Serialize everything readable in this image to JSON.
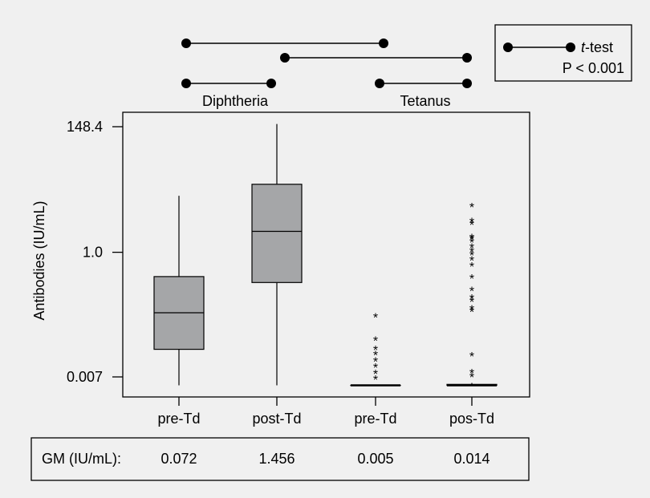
{
  "chart_data": {
    "type": "boxplot",
    "ylabel": "Antibodies (IU/mL)",
    "y_scale": "log",
    "yticks": [
      {
        "value": 148.4,
        "label": "148.4"
      },
      {
        "value": 1.0,
        "label": "1.0"
      },
      {
        "value": 0.007,
        "label": "0.007"
      }
    ],
    "ylim": [
      0.004,
      160
    ],
    "groups": [
      {
        "label": "Diphtheria",
        "categories": [
          0,
          1
        ]
      },
      {
        "label": "Tetanus",
        "categories": [
          2,
          3
        ]
      }
    ],
    "categories": [
      "pre-Td",
      "post-Td",
      "pre-Td",
      "pos-Td"
    ],
    "boxes": [
      {
        "min": 0.005,
        "q1": 0.021,
        "median": 0.09,
        "q3": 0.38,
        "max": 9.5,
        "outliers": []
      },
      {
        "min": 0.005,
        "q1": 0.3,
        "median": 2.3,
        "q3": 15,
        "max": 165,
        "outliers": []
      },
      {
        "min": 0.005,
        "q1": 0.005,
        "median": 0.005,
        "q3": 0.005,
        "max": 0.005,
        "outliers": [
          0.0068,
          0.0085,
          0.011,
          0.014,
          0.018,
          0.022,
          0.032,
          0.08
        ]
      },
      {
        "min": 0.005,
        "q1": 0.005,
        "median": 0.005,
        "q3": 0.0052,
        "max": 0.0055,
        "outliers": [
          0.0075,
          0.0088,
          0.017,
          0.1,
          0.11,
          0.15,
          0.17,
          0.23,
          0.38,
          0.61,
          0.78,
          0.95,
          1.1,
          1.3,
          1.6,
          1.8,
          1.9,
          3.2,
          3.6,
          6.5
        ]
      }
    ],
    "gm_label": "GM (IU/mL):",
    "gm_values": [
      "0.072",
      "1.456",
      "0.005",
      "0.014"
    ],
    "comparisons": [
      [
        0,
        2
      ],
      [
        1,
        3
      ],
      [
        0,
        1
      ],
      [
        2,
        3
      ]
    ],
    "legend": {
      "label": "t-test",
      "label_italic": "t",
      "label_rest": "-test",
      "p_text": "P < 0.001"
    },
    "colors": {
      "box_fill": "#a5a6a8",
      "line": "#000000",
      "background": "#f0f0f0"
    }
  }
}
